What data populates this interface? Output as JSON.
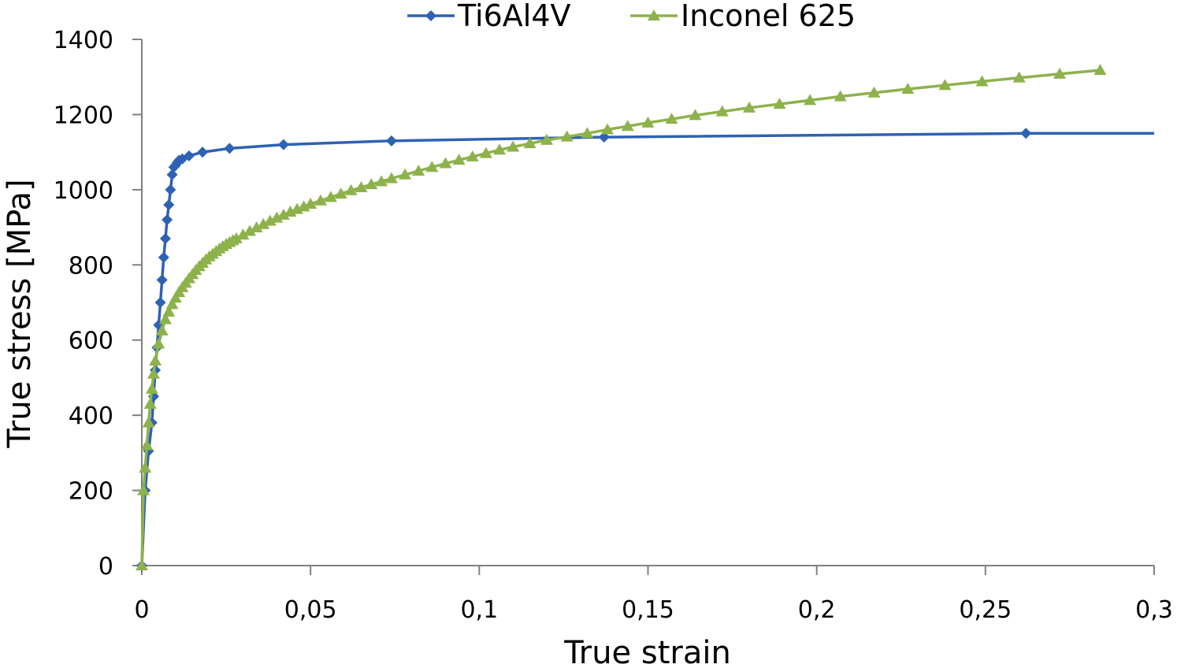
{
  "chart_data": {
    "type": "line",
    "title": "",
    "xlabel": "True strain",
    "ylabel": "True stress [MPa]",
    "xlim": [
      0,
      0.3
    ],
    "ylim": [
      0,
      1400
    ],
    "x_ticks": [
      0,
      0.05,
      0.1,
      0.15,
      0.2,
      0.25,
      0.3
    ],
    "x_tick_labels": [
      "0",
      "0,05",
      "0,1",
      "0,15",
      "0,2",
      "0,25",
      "0,3"
    ],
    "y_ticks": [
      0,
      200,
      400,
      600,
      800,
      1000,
      1200,
      1400
    ],
    "y_tick_labels": [
      "0",
      "200",
      "400",
      "600",
      "800",
      "1000",
      "1200",
      "1400"
    ],
    "grid": false,
    "legend_position": "top-center",
    "series": [
      {
        "name": "Ti6Al4V",
        "color": "#2e62b2",
        "marker": "diamond",
        "x": [
          0,
          0.001,
          0.002,
          0.003,
          0.0035,
          0.004,
          0.0045,
          0.005,
          0.0055,
          0.006,
          0.0065,
          0.007,
          0.0075,
          0.008,
          0.0085,
          0.009,
          0.0095,
          0.01,
          0.0105,
          0.011,
          0.012,
          0.014,
          0.018,
          0.026,
          0.042,
          0.074,
          0.137,
          0.262,
          0.3
        ],
        "y": [
          0,
          200,
          305,
          380,
          450,
          520,
          580,
          640,
          700,
          760,
          820,
          870,
          920,
          960,
          1000,
          1040,
          1060,
          1065,
          1072,
          1078,
          1082,
          1090,
          1100,
          1110,
          1120,
          1130,
          1140,
          1150,
          1150
        ]
      },
      {
        "name": "Inconel 625",
        "color": "#8db24c",
        "marker": "triangle",
        "x": [
          0,
          0.0005,
          0.001,
          0.0015,
          0.002,
          0.0025,
          0.003,
          0.0035,
          0.004,
          0.005,
          0.006,
          0.007,
          0.008,
          0.009,
          0.01,
          0.011,
          0.012,
          0.013,
          0.014,
          0.015,
          0.016,
          0.017,
          0.018,
          0.019,
          0.02,
          0.021,
          0.022,
          0.023,
          0.024,
          0.025,
          0.026,
          0.027,
          0.028,
          0.03,
          0.032,
          0.034,
          0.036,
          0.038,
          0.04,
          0.042,
          0.044,
          0.046,
          0.048,
          0.05,
          0.053,
          0.056,
          0.059,
          0.062,
          0.065,
          0.068,
          0.071,
          0.074,
          0.078,
          0.082,
          0.086,
          0.09,
          0.094,
          0.098,
          0.102,
          0.106,
          0.11,
          0.115,
          0.12,
          0.126,
          0.132,
          0.138,
          0.144,
          0.15,
          0.157,
          0.164,
          0.172,
          0.18,
          0.189,
          0.198,
          0.207,
          0.217,
          0.227,
          0.238,
          0.249,
          0.26,
          0.272,
          0.284
        ],
        "y": [
          0,
          200,
          260,
          320,
          380,
          430,
          470,
          510,
          545,
          590,
          625,
          655,
          675,
          695,
          712,
          727,
          740,
          752,
          764,
          775,
          786,
          796,
          805,
          814,
          822,
          829,
          836,
          843,
          849,
          855,
          860,
          865,
          870,
          880,
          890,
          899,
          908,
          917,
          925,
          933,
          941,
          948,
          955,
          962,
          971,
          980,
          989,
          998,
          1006,
          1014,
          1022,
          1030,
          1040,
          1050,
          1060,
          1070,
          1079,
          1088,
          1097,
          1106,
          1114,
          1123,
          1132,
          1141,
          1150,
          1160,
          1169,
          1178,
          1188,
          1198,
          1208,
          1218,
          1228,
          1238,
          1248,
          1258,
          1268,
          1278,
          1288,
          1298,
          1308,
          1318
        ]
      }
    ]
  }
}
